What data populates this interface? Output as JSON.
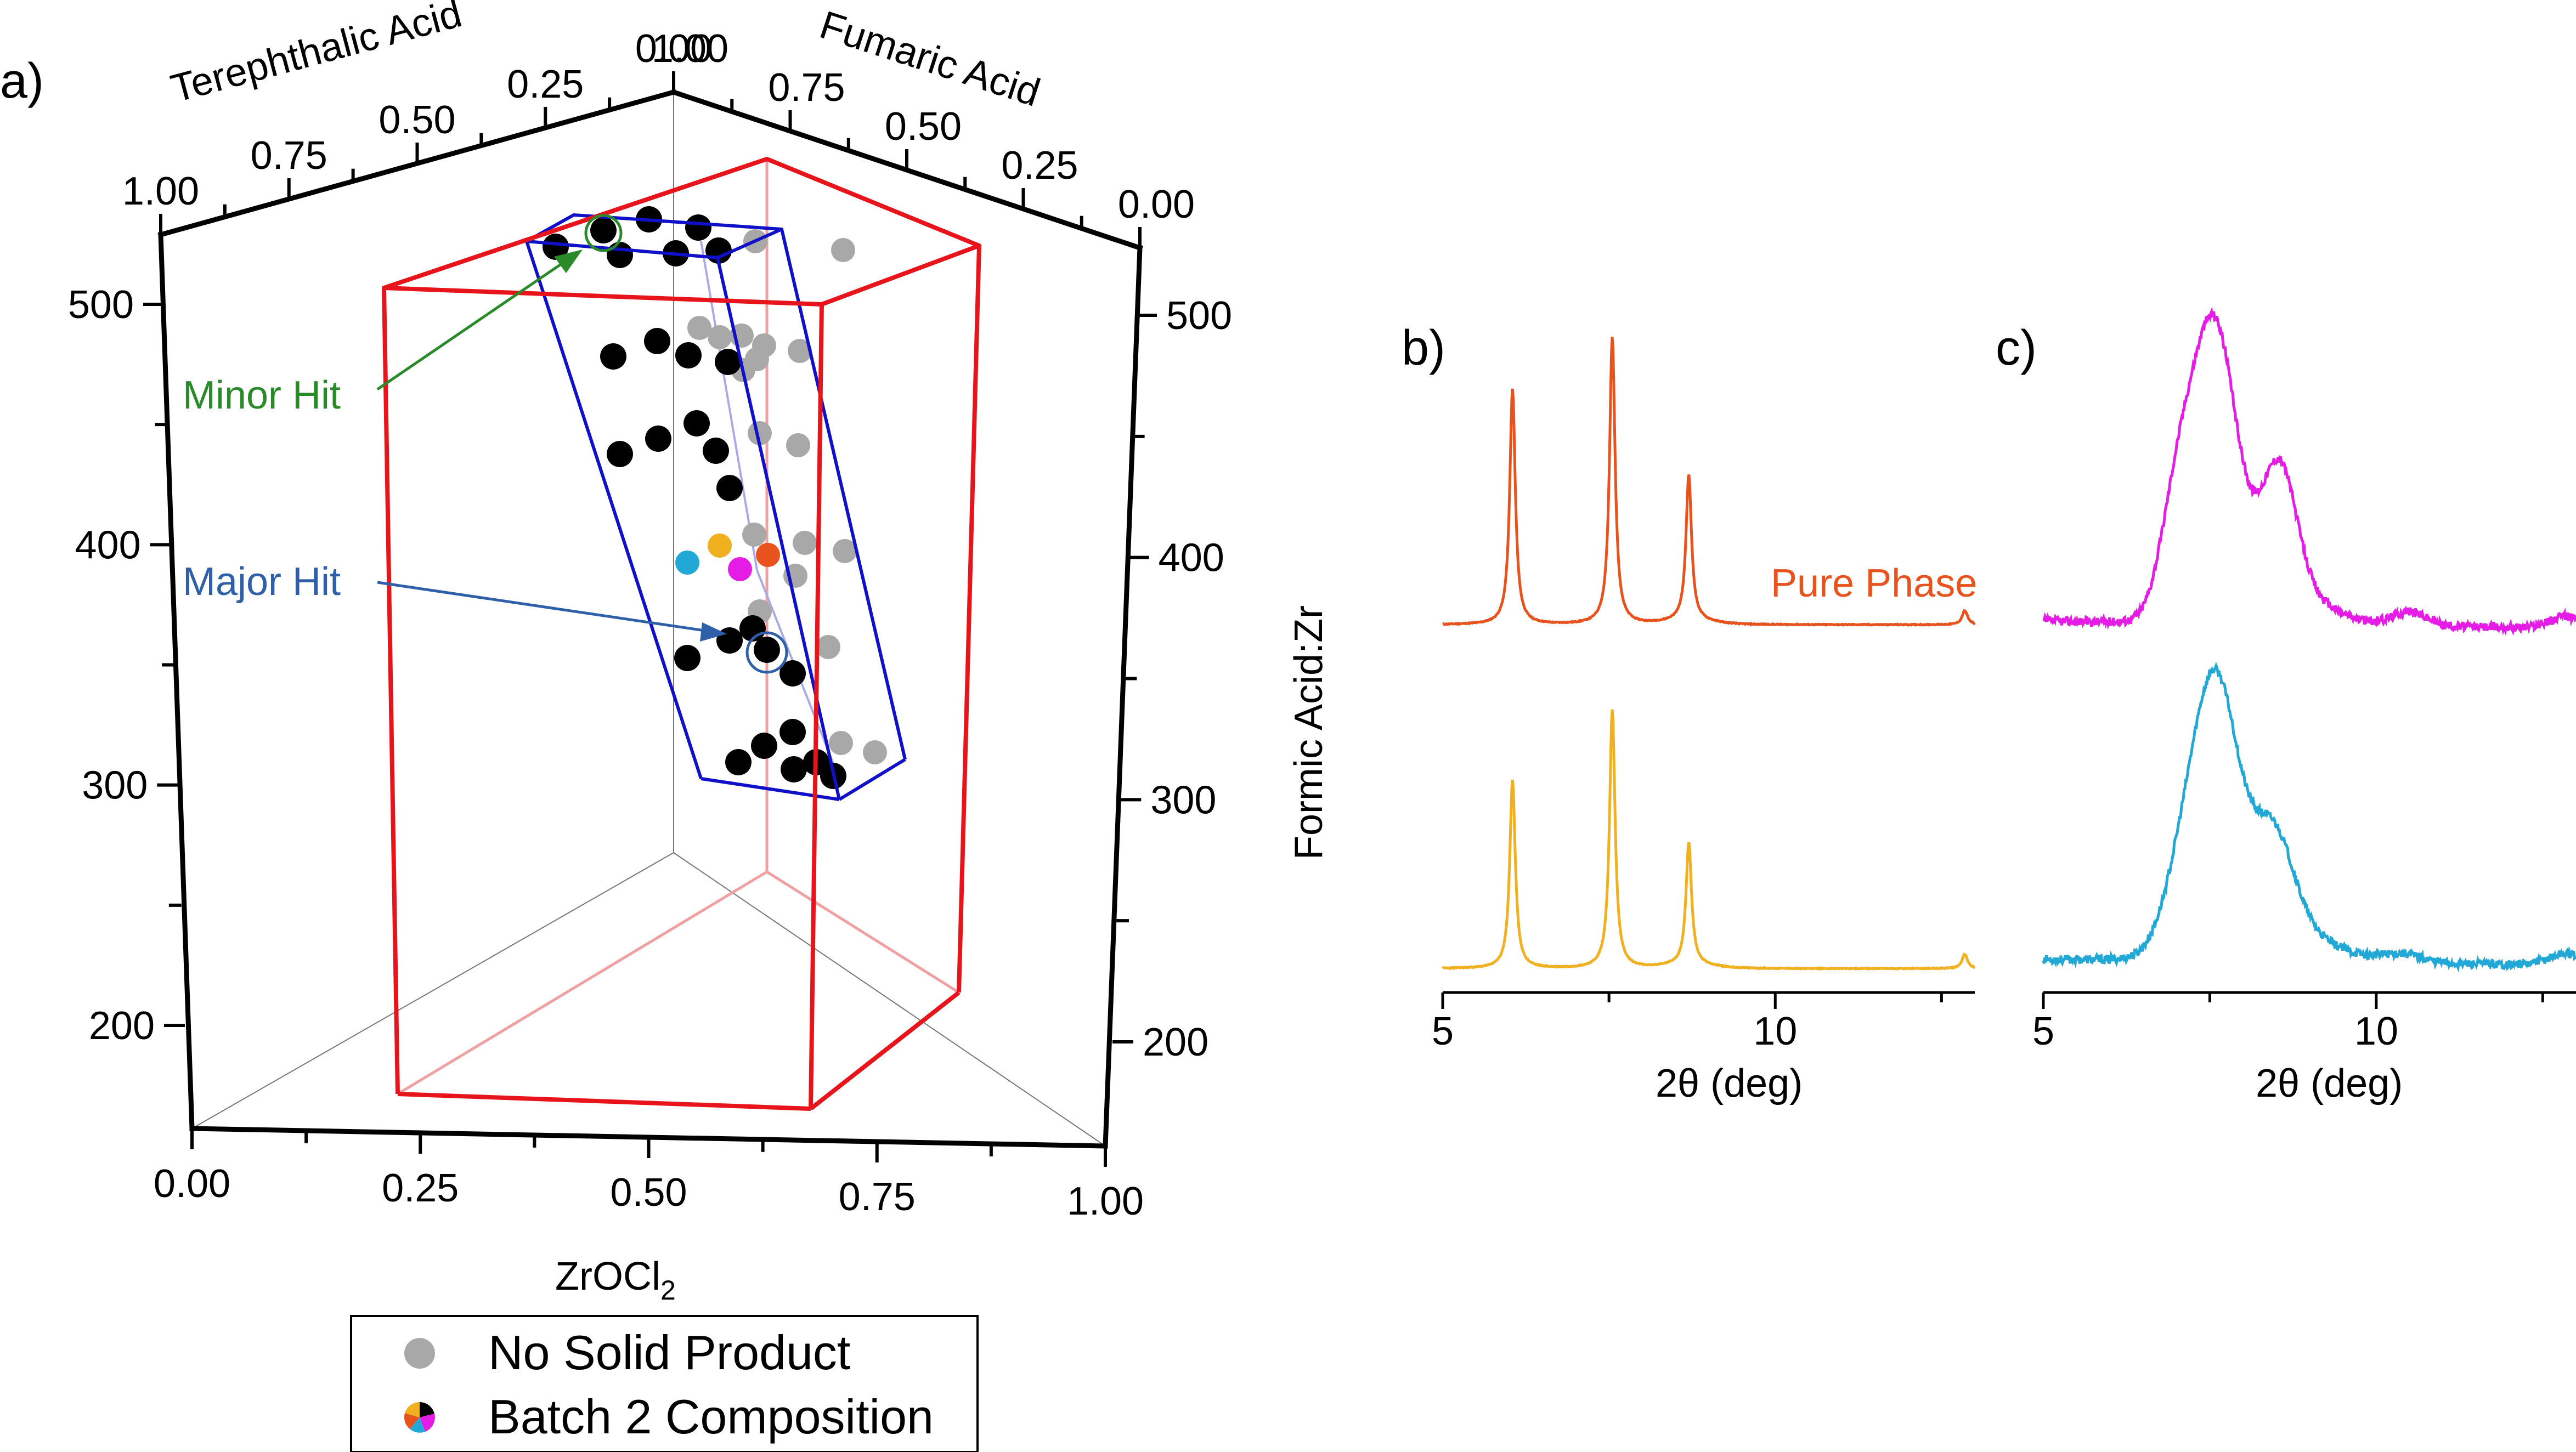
{
  "colors": {
    "hit_region": "#e8141b",
    "sampled_region": "#1010c8",
    "minor_hit": "#2a8a2a",
    "major_hit": "#2e5fa8",
    "no_solid": "#a8a8a8",
    "solid": "#000000",
    "orange_red": "#e8521c",
    "orange": "#f0b020",
    "magenta": "#e51ce5",
    "cyan": "#22a8d6"
  },
  "panel_labels": {
    "a": "a)",
    "b": "b)",
    "c": "c)"
  },
  "chart_data": [
    {
      "type": "scatter",
      "panel": "a",
      "projection": "3d",
      "axes": {
        "x": {
          "label": "ZrOCl",
          "label_sub": "2",
          "ticks": [
            "0.00",
            "0.25",
            "0.50",
            "0.75",
            "1.00"
          ]
        },
        "y_terephthalic": {
          "label": "Terephthalic Acid",
          "ticks": [
            "1.00",
            "0.75",
            "0.50",
            "0.25",
            "0.00"
          ]
        },
        "y_fumaric": {
          "label": "Fumaric Acid",
          "ticks": [
            "1.00",
            "0.75",
            "0.50",
            "0.25",
            "0.00"
          ]
        },
        "z_left": {
          "ticks": [
            "500",
            "400",
            "300",
            "200"
          ]
        },
        "z_right": {
          "label": "Formic Acid:Zr",
          "ticks": [
            "500",
            "400",
            "300",
            "200"
          ]
        }
      },
      "annotations": {
        "minor_hit": "Minor Hit",
        "major_hit": "Major Hit"
      },
      "legend": {
        "placement": "bottom-center",
        "entries": [
          {
            "label": "No Solid Product",
            "color": "#a8a8a8"
          },
          {
            "label": "Batch 2 Composition",
            "colors": [
              "#e8521c",
              "#f0b020",
              "#e51ce5",
              "#22a8d6",
              "#000000"
            ]
          }
        ]
      }
    },
    {
      "type": "line",
      "panel": "b",
      "xlabel": "2θ (deg)",
      "x_ticks": [
        "5",
        "10"
      ],
      "xlim": [
        5,
        13
      ],
      "annotation": "Pure Phase",
      "series": [
        {
          "color": "#e8521c",
          "label": "Pure Phase",
          "peaks": [
            [
              6.05,
              1.0
            ],
            [
              7.55,
              1.22
            ],
            [
              8.7,
              0.62
            ],
            [
              12.85,
              0.06
            ]
          ]
        },
        {
          "color": "#f0b020",
          "peaks": [
            [
              6.05,
              0.8
            ],
            [
              7.55,
              1.1
            ],
            [
              8.7,
              0.52
            ],
            [
              12.85,
              0.06
            ]
          ]
        }
      ]
    },
    {
      "type": "line",
      "panel": "c",
      "xlabel": "2θ (deg)",
      "x_ticks": [
        "5",
        "10"
      ],
      "xlim": [
        5,
        13
      ],
      "series": [
        {
          "color": "#e51ce5"
        },
        {
          "color": "#22a8d6"
        }
      ]
    }
  ]
}
